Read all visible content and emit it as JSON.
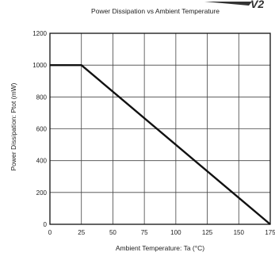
{
  "corner_fragment": "V2",
  "chart_data": {
    "type": "line",
    "title": "Power Dissipation vs Ambient Temperature",
    "xlabel": "Ambient Temperature: Ta (°C)",
    "ylabel": "Power Dissipation: Ptot (mW)",
    "xlim": [
      0,
      175
    ],
    "ylim": [
      0,
      1200
    ],
    "x_ticks": [
      "0",
      "25",
      "50",
      "75",
      "100",
      "125",
      "150",
      "175"
    ],
    "y_ticks": [
      "0",
      "200",
      "400",
      "600",
      "800",
      "1000",
      "1200"
    ],
    "grid": true,
    "series": [
      {
        "x": [
          0,
          25,
          175
        ],
        "y": [
          1000,
          1000,
          0
        ]
      }
    ]
  }
}
